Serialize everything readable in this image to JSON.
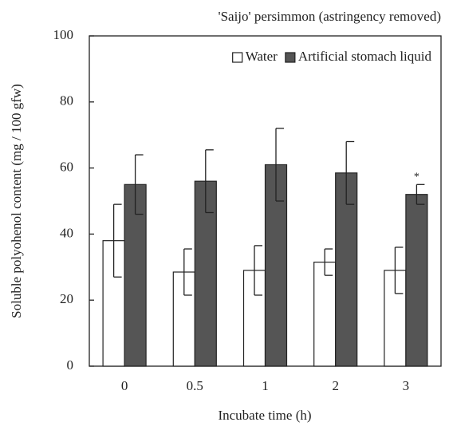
{
  "chart_data": {
    "type": "bar",
    "title": "'Saijo' persimmon (astringency removed)",
    "x_label": "Incubate time (h)",
    "y_label": "Soluble polyohenol content (mg / 100 gfw)",
    "categories": [
      "0",
      "0.5",
      "1",
      "2",
      "3"
    ],
    "series": [
      {
        "name": "Water",
        "color": "#ffffff",
        "values": [
          38,
          28.5,
          29,
          31.5,
          29
        ],
        "errors": [
          11,
          7,
          7.5,
          4,
          7
        ]
      },
      {
        "name": "Artificial stomach liquid",
        "color": "#555555",
        "values": [
          55,
          56,
          61,
          58.5,
          52
        ],
        "errors": [
          9,
          9.5,
          11,
          9.5,
          3
        ]
      }
    ],
    "annotations": [
      {
        "text": "*",
        "category": 4,
        "series": 1
      }
    ],
    "ylim": [
      0,
      100
    ],
    "yticks": [
      0,
      20,
      40,
      60,
      80,
      100
    ],
    "legend": "top-right"
  }
}
